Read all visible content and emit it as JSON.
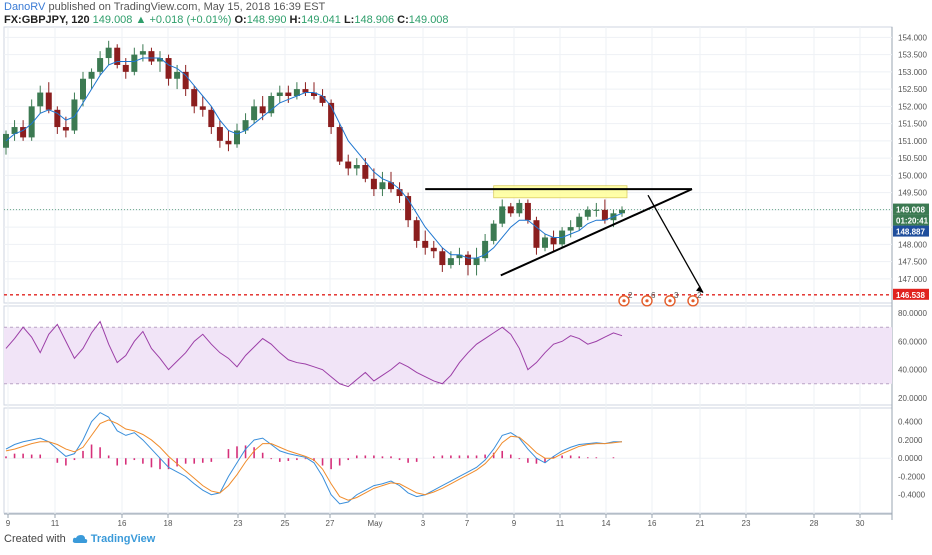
{
  "header": {
    "author": "DanoRV",
    "published_text": "published on TradingView.com, May 15, 2018 16:39 EST",
    "symbol": "FX:GBPJPY, 120",
    "last": "149.008",
    "up_arrow": "▲",
    "change": "+0.018 (+0.01%)",
    "open_label": "O:",
    "open": "148.990",
    "high_label": "H:",
    "high": "149.041",
    "low_label": "L:",
    "low": "148.906",
    "close_label": "C:",
    "close": "149.008"
  },
  "footer": {
    "created_with": "Created with",
    "brand": "TradingView"
  },
  "colors": {
    "up_candle": "#3c7a52",
    "down_candle": "#8b1e1e",
    "ma_line": "#1f77d0",
    "resistance_zone": "#ffff99",
    "support_dotted": "#e0231f",
    "rsi_line": "#9c3fa7",
    "rsi_band": "#f1e4f7",
    "macd_line": "#3a8fdb",
    "signal_line": "#f08c2c",
    "hist_color": "#d6307a"
  },
  "chart_data": [
    {
      "type": "candlestick",
      "title": "",
      "series": [
        {
          "name": "GBPJPY 120",
          "ohlc": [
            [
              150.8,
              151.3,
              150.6,
              151.2
            ],
            [
              151.2,
              151.6,
              151.0,
              151.4
            ],
            [
              151.4,
              151.6,
              151.0,
              151.1
            ],
            [
              151.1,
              152.2,
              151.0,
              152.0
            ],
            [
              152.0,
              152.6,
              151.8,
              152.4
            ],
            [
              152.4,
              152.7,
              151.8,
              151.9
            ],
            [
              151.9,
              152.0,
              151.2,
              151.4
            ],
            [
              151.4,
              151.7,
              151.1,
              151.3
            ],
            [
              151.3,
              152.4,
              151.2,
              152.2
            ],
            [
              152.2,
              153.0,
              152.0,
              152.8
            ],
            [
              152.8,
              153.1,
              152.5,
              153.0
            ],
            [
              153.0,
              153.6,
              152.9,
              153.4
            ],
            [
              153.4,
              153.9,
              153.2,
              153.7
            ],
            [
              153.7,
              153.8,
              153.1,
              153.2
            ],
            [
              153.2,
              153.4,
              152.8,
              153.0
            ],
            [
              153.0,
              153.7,
              152.9,
              153.5
            ],
            [
              153.5,
              153.8,
              153.3,
              153.6
            ],
            [
              153.6,
              153.7,
              153.2,
              153.3
            ],
            [
              153.3,
              153.6,
              153.0,
              153.4
            ],
            [
              153.4,
              153.5,
              152.6,
              152.8
            ],
            [
              152.8,
              153.2,
              152.5,
              153.0
            ],
            [
              153.0,
              153.2,
              152.3,
              152.5
            ],
            [
              152.5,
              152.6,
              151.8,
              152.0
            ],
            [
              152.0,
              152.3,
              151.7,
              151.9
            ],
            [
              151.9,
              152.0,
              151.2,
              151.4
            ],
            [
              151.4,
              151.6,
              150.8,
              151.0
            ],
            [
              151.0,
              151.3,
              150.7,
              150.9
            ],
            [
              150.9,
              151.5,
              150.8,
              151.3
            ],
            [
              151.3,
              151.8,
              151.2,
              151.6
            ],
            [
              151.6,
              152.2,
              151.5,
              152.0
            ],
            [
              152.0,
              152.3,
              151.6,
              151.8
            ],
            [
              151.8,
              152.4,
              151.7,
              152.3
            ],
            [
              152.3,
              152.6,
              152.1,
              152.4
            ],
            [
              152.4,
              152.6,
              152.1,
              152.3
            ],
            [
              152.3,
              152.7,
              152.2,
              152.5
            ],
            [
              152.5,
              152.7,
              152.3,
              152.4
            ],
            [
              152.4,
              152.7,
              152.2,
              152.3
            ],
            [
              152.3,
              152.5,
              152.0,
              152.1
            ],
            [
              152.1,
              152.2,
              151.2,
              151.4
            ],
            [
              151.4,
              151.5,
              150.3,
              150.4
            ],
            [
              150.4,
              150.6,
              150.0,
              150.2
            ],
            [
              150.2,
              150.5,
              150.0,
              150.3
            ],
            [
              150.3,
              150.5,
              149.8,
              149.9
            ],
            [
              149.9,
              150.2,
              149.4,
              149.6
            ],
            [
              149.6,
              150.1,
              149.4,
              149.8
            ],
            [
              149.8,
              150.1,
              149.5,
              149.6
            ],
            [
              149.6,
              149.8,
              149.2,
              149.4
            ],
            [
              149.4,
              149.5,
              148.5,
              148.7
            ],
            [
              148.7,
              148.8,
              147.9,
              148.1
            ],
            [
              148.1,
              148.4,
              147.7,
              147.9
            ],
            [
              147.9,
              148.1,
              147.6,
              147.8
            ],
            [
              147.8,
              147.9,
              147.2,
              147.4
            ],
            [
              147.4,
              147.8,
              147.3,
              147.6
            ],
            [
              147.6,
              147.9,
              147.4,
              147.7
            ],
            [
              147.7,
              147.8,
              147.1,
              147.4
            ],
            [
              147.4,
              147.9,
              147.1,
              147.6
            ],
            [
              147.6,
              148.3,
              147.5,
              148.1
            ],
            [
              148.1,
              148.7,
              148.0,
              148.6
            ],
            [
              148.6,
              149.3,
              148.5,
              149.1
            ],
            [
              149.1,
              149.2,
              148.8,
              148.9
            ],
            [
              148.9,
              149.3,
              148.8,
              149.2
            ],
            [
              149.2,
              149.3,
              148.6,
              148.7
            ],
            [
              148.7,
              148.8,
              147.7,
              147.9
            ],
            [
              147.9,
              148.3,
              147.8,
              148.2
            ],
            [
              148.2,
              148.4,
              147.8,
              148.0
            ],
            [
              148.0,
              148.5,
              147.9,
              148.4
            ],
            [
              148.4,
              148.7,
              148.2,
              148.5
            ],
            [
              148.5,
              148.9,
              148.4,
              148.8
            ],
            [
              148.8,
              149.1,
              148.7,
              149.0
            ],
            [
              149.0,
              149.2,
              148.8,
              149.0
            ],
            [
              149.0,
              149.3,
              148.6,
              148.7
            ],
            [
              148.7,
              149.0,
              148.5,
              148.9
            ],
            [
              148.9,
              149.1,
              148.8,
              149.0
            ]
          ]
        }
      ],
      "ma_values": [
        151.0,
        151.2,
        151.3,
        151.5,
        151.8,
        151.9,
        151.8,
        151.6,
        151.7,
        152.1,
        152.5,
        152.9,
        153.2,
        153.3,
        153.3,
        153.3,
        153.4,
        153.4,
        153.4,
        153.2,
        153.1,
        152.9,
        152.6,
        152.3,
        152.0,
        151.6,
        151.3,
        151.2,
        151.3,
        151.5,
        151.7,
        151.9,
        152.1,
        152.2,
        152.3,
        152.4,
        152.4,
        152.3,
        152.0,
        151.5,
        151.0,
        150.7,
        150.4,
        150.1,
        149.9,
        149.8,
        149.6,
        149.3,
        148.9,
        148.5,
        148.2,
        147.9,
        147.7,
        147.7,
        147.6,
        147.6,
        147.7,
        147.9,
        148.2,
        148.5,
        148.7,
        148.7,
        148.5,
        148.3,
        148.2,
        148.2,
        148.3,
        148.4,
        148.6,
        148.7,
        148.7,
        148.8,
        148.9
      ],
      "ylim": [
        146.3,
        154.3
      ],
      "y_ticks": [
        "154.000",
        "153.500",
        "153.000",
        "152.500",
        "152.000",
        "151.500",
        "151.000",
        "150.500",
        "150.000",
        "149.500",
        "149.000",
        "148.500",
        "148.000",
        "147.500",
        "147.000"
      ],
      "price_tags": [
        {
          "label": "149.008",
          "color": "#3c7a52"
        },
        {
          "label": "01:20:41",
          "color": "#3c7a52"
        },
        {
          "label": "148.887",
          "color": "#1f4e9c"
        },
        {
          "label": "146.538",
          "color": "#e0231f"
        }
      ],
      "annotations": {
        "resistance_zone": [
          149.35,
          149.7
        ],
        "resistance_line": 149.6,
        "support_level": 146.538,
        "trend_line": [
          [
            147.1
          ],
          [
            149.6
          ]
        ],
        "projection_target": 146.6
      },
      "event_markers": [
        "2",
        "6",
        "3",
        "2"
      ]
    },
    {
      "type": "line",
      "title": "",
      "series": [
        {
          "name": "RSI",
          "values": [
            55,
            62,
            70,
            63,
            52,
            65,
            72,
            60,
            48,
            55,
            66,
            74,
            58,
            45,
            50,
            60,
            67,
            55,
            48,
            40,
            46,
            52,
            60,
            65,
            58,
            52,
            48,
            42,
            50,
            56,
            62,
            58,
            52,
            47,
            45,
            44,
            42,
            40,
            35,
            30,
            28,
            33,
            38,
            32,
            36,
            40,
            45,
            42,
            38,
            35,
            32,
            30,
            36,
            45,
            52,
            58,
            62,
            66,
            70,
            65,
            55,
            40,
            45,
            52,
            58,
            60,
            64,
            62,
            58,
            60,
            63,
            66,
            64
          ]
        }
      ],
      "ylim": [
        15,
        85
      ],
      "band": [
        30,
        70
      ],
      "y_ticks": [
        "80.0000",
        "60.0000",
        "40.0000",
        "20.0000"
      ]
    },
    {
      "type": "line",
      "title": "",
      "series": [
        {
          "name": "MACD",
          "values": [
            0.1,
            0.15,
            0.18,
            0.2,
            0.22,
            0.18,
            0.1,
            0.02,
            0.05,
            0.2,
            0.4,
            0.5,
            0.45,
            0.3,
            0.25,
            0.28,
            0.2,
            0.1,
            0.0,
            -0.1,
            -0.15,
            -0.2,
            -0.28,
            -0.35,
            -0.4,
            -0.38,
            -0.2,
            -0.05,
            0.1,
            0.2,
            0.22,
            0.15,
            0.08,
            0.05,
            0.03,
            0.01,
            -0.05,
            -0.2,
            -0.4,
            -0.5,
            -0.48,
            -0.4,
            -0.35,
            -0.3,
            -0.28,
            -0.25,
            -0.3,
            -0.38,
            -0.42,
            -0.4,
            -0.35,
            -0.3,
            -0.25,
            -0.2,
            -0.15,
            -0.1,
            -0.02,
            0.1,
            0.25,
            0.28,
            0.22,
            0.1,
            0.0,
            -0.05,
            0.02,
            0.08,
            0.12,
            0.15,
            0.16,
            0.17,
            0.16,
            0.18,
            0.18
          ]
        },
        {
          "name": "Signal",
          "values": [
            0.08,
            0.1,
            0.13,
            0.16,
            0.18,
            0.18,
            0.15,
            0.1,
            0.07,
            0.12,
            0.25,
            0.38,
            0.42,
            0.38,
            0.32,
            0.3,
            0.26,
            0.2,
            0.12,
            0.02,
            -0.06,
            -0.14,
            -0.22,
            -0.3,
            -0.36,
            -0.38,
            -0.3,
            -0.18,
            -0.04,
            0.08,
            0.16,
            0.16,
            0.12,
            0.08,
            0.05,
            0.02,
            -0.02,
            -0.12,
            -0.28,
            -0.42,
            -0.46,
            -0.43,
            -0.38,
            -0.33,
            -0.3,
            -0.27,
            -0.28,
            -0.33,
            -0.38,
            -0.4,
            -0.37,
            -0.33,
            -0.28,
            -0.23,
            -0.18,
            -0.13,
            -0.06,
            0.04,
            0.17,
            0.24,
            0.23,
            0.15,
            0.06,
            0.0,
            0.0,
            0.05,
            0.09,
            0.13,
            0.15,
            0.16,
            0.16,
            0.17,
            0.18
          ]
        },
        {
          "name": "Histogram",
          "values": [
            0.02,
            0.05,
            0.05,
            0.04,
            0.04,
            0.0,
            -0.05,
            -0.08,
            -0.02,
            0.08,
            0.15,
            0.12,
            0.03,
            -0.08,
            -0.07,
            -0.02,
            -0.06,
            -0.1,
            -0.12,
            -0.12,
            -0.09,
            -0.06,
            -0.06,
            -0.05,
            -0.04,
            0.0,
            0.1,
            0.13,
            0.14,
            0.12,
            0.06,
            -0.01,
            -0.04,
            -0.03,
            -0.02,
            -0.01,
            -0.03,
            -0.08,
            -0.12,
            -0.08,
            -0.02,
            0.03,
            0.03,
            0.03,
            0.02,
            0.02,
            -0.02,
            -0.05,
            -0.04,
            0.0,
            0.02,
            0.03,
            0.03,
            0.03,
            0.03,
            0.03,
            0.04,
            0.06,
            0.08,
            0.04,
            -0.01,
            -0.05,
            -0.06,
            -0.05,
            0.02,
            0.03,
            0.03,
            0.02,
            0.01,
            0.01,
            0.0,
            0.01,
            0.0
          ]
        }
      ],
      "ylim": [
        -0.6,
        0.55
      ],
      "y_ticks": [
        "0.4000",
        "0.2000",
        "0.0000",
        "-0.2000",
        "-0.4000"
      ]
    }
  ],
  "x_axis": {
    "ticks": [
      "9",
      "11",
      "16",
      "18",
      "23",
      "25",
      "27",
      "May",
      "3",
      "7",
      "9",
      "11",
      "14",
      "16",
      "21",
      "23",
      "28",
      "30"
    ]
  }
}
